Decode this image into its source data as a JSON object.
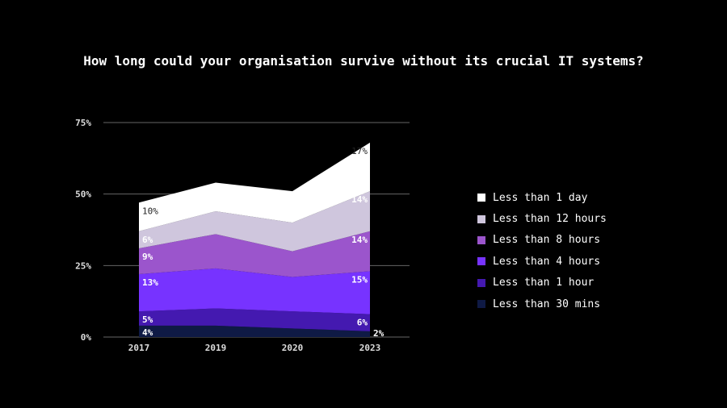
{
  "chart_data": {
    "type": "area",
    "stacked": true,
    "title": "How long could your organisation survive without its crucial IT systems?",
    "categories": [
      "2017",
      "2019",
      "2020",
      "2023"
    ],
    "ylim": [
      0,
      75
    ],
    "yticks": [
      0,
      25,
      50,
      75
    ],
    "ytick_labels": [
      "0%",
      "25%",
      "50%",
      "75%"
    ],
    "grid": true,
    "legend_position": "right",
    "series": [
      {
        "name": "Less than 30 mins",
        "color": "#0f1a45",
        "values": [
          4,
          4,
          3,
          2
        ],
        "labels": [
          "4%",
          null,
          null,
          "2%"
        ],
        "label_color": "#ffffff"
      },
      {
        "name": "Less than 1 hour",
        "color": "#4419b0",
        "values": [
          5,
          6,
          6,
          6
        ],
        "labels": [
          "5%",
          null,
          null,
          "6%"
        ],
        "label_color": "#ffffff"
      },
      {
        "name": "Less than 4 hours",
        "color": "#7733ff",
        "values": [
          13,
          14,
          12,
          15
        ],
        "labels": [
          "13%",
          null,
          null,
          "15%"
        ],
        "label_color": "#ffffff"
      },
      {
        "name": "Less than 8 hours",
        "color": "#9b55cc",
        "values": [
          9,
          12,
          9,
          14
        ],
        "labels": [
          "9%",
          null,
          null,
          "14%"
        ],
        "label_color": "#ffffff"
      },
      {
        "name": "Less than 12 hours",
        "color": "#cfc6dd",
        "values": [
          6,
          8,
          10,
          14
        ],
        "labels": [
          "6%",
          null,
          null,
          "14%"
        ],
        "label_color": "#ffffff"
      },
      {
        "name": "Less than 1 day",
        "color": "#ffffff",
        "values": [
          10,
          10,
          11,
          17
        ],
        "labels": [
          "10%",
          null,
          null,
          "17%"
        ],
        "label_color": "#222222"
      }
    ]
  }
}
